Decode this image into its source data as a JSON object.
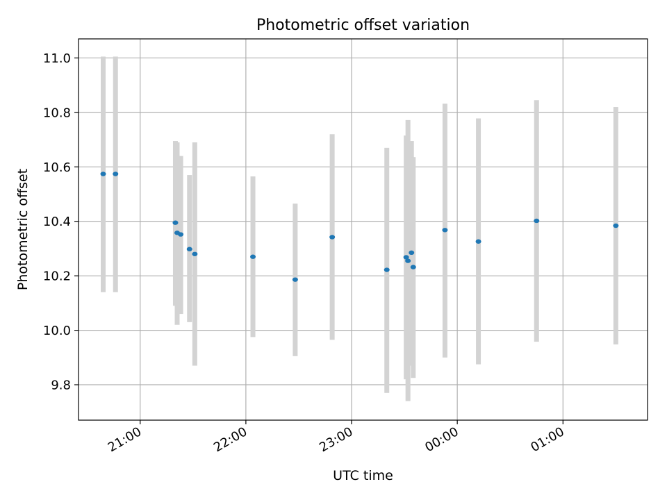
{
  "chart_data": {
    "type": "scatter",
    "title": "Photometric offset variation",
    "xlabel": "UTC time",
    "ylabel": "Photometric offset",
    "x_axis_kind": "time",
    "xlim": [
      "20:25",
      "01:48"
    ],
    "ylim": [
      9.67,
      11.07
    ],
    "x_ticks": [
      "21:00",
      "22:00",
      "23:00",
      "00:00",
      "01:00"
    ],
    "y_ticks": [
      "9.8",
      "10.0",
      "10.2",
      "10.4",
      "10.6",
      "10.8",
      "11.0"
    ],
    "grid": true,
    "legend": "none",
    "colors": {
      "point": "#1f77b4",
      "error_bar": "#d3d3d3",
      "grid": "#b0b0b0",
      "axes": "#000000"
    },
    "series": [
      {
        "points": [
          {
            "x": "20:39",
            "y": 10.574,
            "ylow": 10.14,
            "yhigh": 11.005
          },
          {
            "x": "20:46",
            "y": 10.574,
            "ylow": 10.14,
            "yhigh": 11.005
          },
          {
            "x": "21:20",
            "y": 10.395,
            "ylow": 10.09,
            "yhigh": 10.695
          },
          {
            "x": "21:21",
            "y": 10.358,
            "ylow": 10.02,
            "yhigh": 10.69
          },
          {
            "x": "21:23",
            "y": 10.352,
            "ylow": 10.06,
            "yhigh": 10.64
          },
          {
            "x": "21:28",
            "y": 10.298,
            "ylow": 10.03,
            "yhigh": 10.57
          },
          {
            "x": "21:31",
            "y": 10.28,
            "ylow": 9.87,
            "yhigh": 10.69
          },
          {
            "x": "22:04",
            "y": 10.27,
            "ylow": 9.975,
            "yhigh": 10.565
          },
          {
            "x": "22:28",
            "y": 10.186,
            "ylow": 9.905,
            "yhigh": 10.465
          },
          {
            "x": "22:49",
            "y": 10.342,
            "ylow": 9.965,
            "yhigh": 10.72
          },
          {
            "x": "23:20",
            "y": 10.222,
            "ylow": 9.77,
            "yhigh": 10.67
          },
          {
            "x": "23:31",
            "y": 10.268,
            "ylow": 9.82,
            "yhigh": 10.715
          },
          {
            "x": "23:32",
            "y": 10.255,
            "ylow": 9.74,
            "yhigh": 10.772
          },
          {
            "x": "23:34",
            "y": 10.285,
            "ylow": 9.87,
            "yhigh": 10.695
          },
          {
            "x": "23:35",
            "y": 10.232,
            "ylow": 9.825,
            "yhigh": 10.636
          },
          {
            "x": "23:53",
            "y": 10.368,
            "ylow": 9.9,
            "yhigh": 10.832
          },
          {
            "x": "00:12",
            "y": 10.326,
            "ylow": 9.875,
            "yhigh": 10.778
          },
          {
            "x": "00:45",
            "y": 10.402,
            "ylow": 9.958,
            "yhigh": 10.845
          },
          {
            "x": "01:30",
            "y": 10.384,
            "ylow": 9.948,
            "yhigh": 10.82
          }
        ]
      }
    ]
  }
}
